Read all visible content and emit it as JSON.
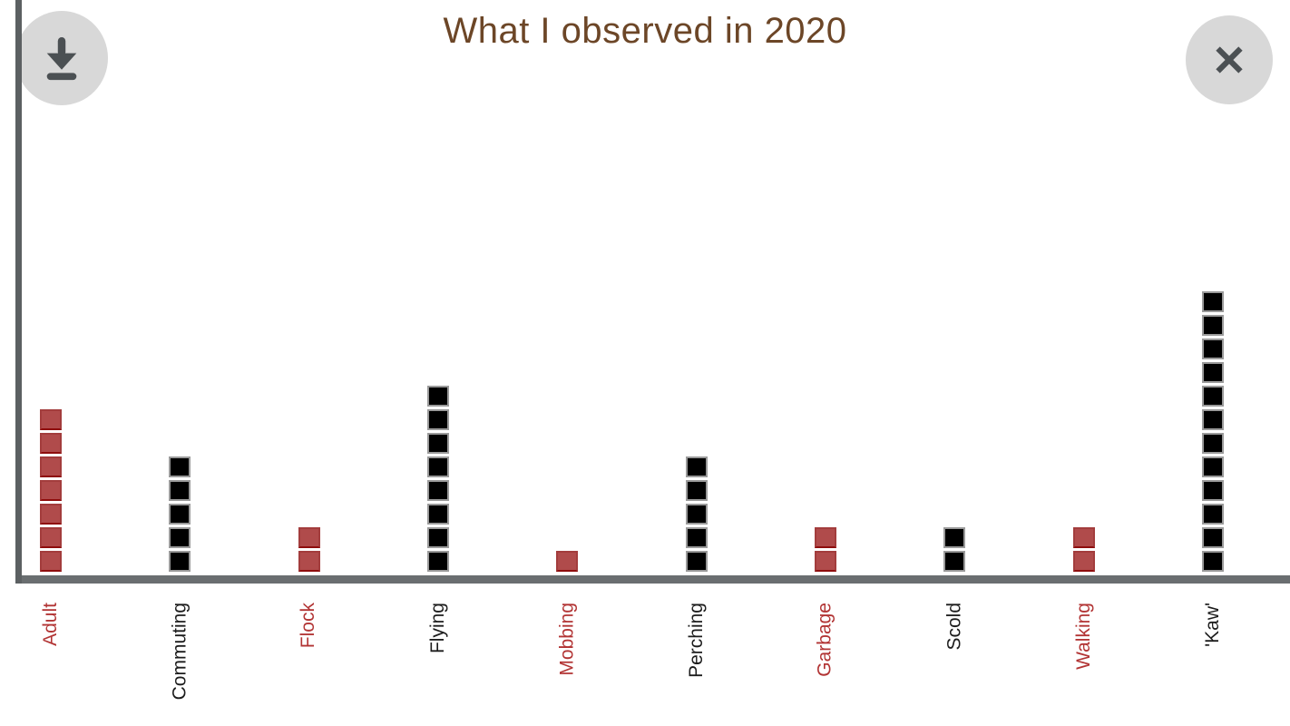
{
  "header": {
    "title": "What I observed in 2020"
  },
  "icons": {
    "download": "down-arrow-to-bar",
    "close": "x-cross"
  },
  "chart_data": {
    "type": "bar",
    "subtype": "pictograph-stacked-unit-squares",
    "title": "What I observed in 2020",
    "categories": [
      "Adult",
      "Commuting",
      "Flock",
      "Flying",
      "Mobbing",
      "Perching",
      "Garbage",
      "Scold",
      "Walking",
      "'Kaw'"
    ],
    "values": [
      7,
      5,
      2,
      8,
      1,
      5,
      2,
      2,
      2,
      12
    ],
    "colors": [
      "red",
      "black",
      "red",
      "black",
      "red",
      "black",
      "red",
      "black",
      "red",
      "black"
    ],
    "square_unit": 1,
    "xlabel": "",
    "ylabel": "",
    "ylim": [
      0,
      12
    ],
    "grid": false,
    "legend": false,
    "x_tick_label_rotation_deg": 90
  },
  "style": {
    "title_brown": "#6c4627",
    "axis_dark": "#5c6062",
    "axis_mid": "#6a6e70",
    "button_bg": "#d8d8d8",
    "button_icon": "#4b5053",
    "red_fill": "#b04b4b",
    "red_border": "#a33d3d",
    "red_border_bottom": "#8e0d0d",
    "black_fill": "#000000",
    "black_border": "#9a9a9a",
    "label_red": "#b23434",
    "label_black": "#1c1c1c"
  }
}
